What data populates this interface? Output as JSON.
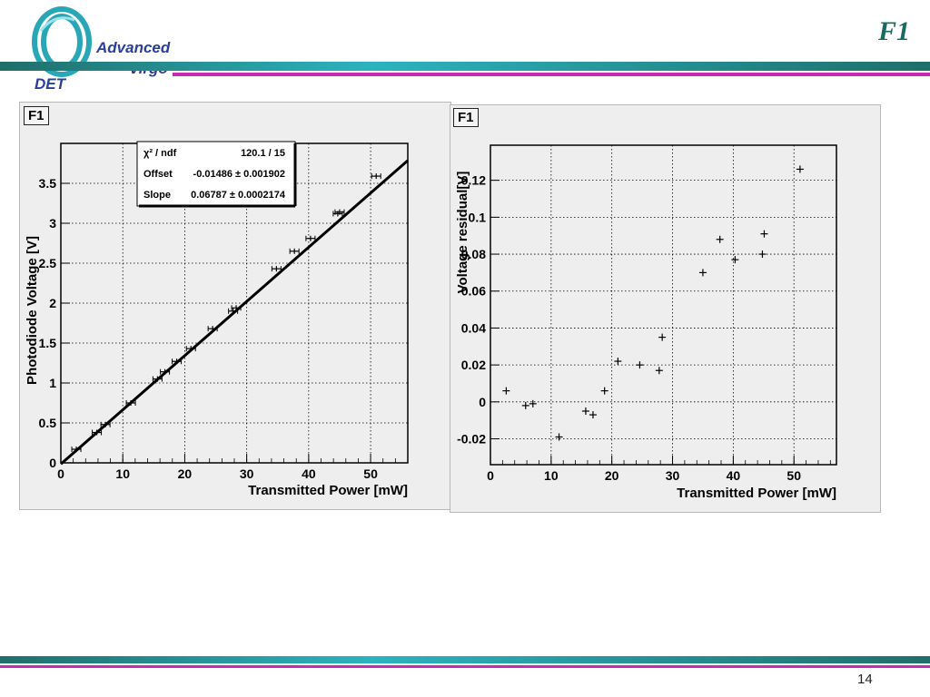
{
  "header": {
    "title": "F1",
    "logo": {
      "line1": "Advanced",
      "line2": "Virgo",
      "tag": "DET"
    },
    "colors": {
      "teal": "#1f6f6a",
      "cyan": "#26b5c2",
      "magenta": "#c32bb3"
    }
  },
  "footer": {
    "page_number": "14"
  },
  "chart_data": [
    {
      "type": "scatter",
      "panel_label": "F1",
      "xlabel": "Transmitted Power [mW]",
      "ylabel": "Photodiode Voltage [V]",
      "xlim": [
        0,
        56
      ],
      "ylim": [
        0,
        4
      ],
      "xticks": [
        "0",
        "10",
        "20",
        "30",
        "40",
        "50"
      ],
      "yticks": [
        "0",
        "0.5",
        "1",
        "1.5",
        "2",
        "2.5",
        "3",
        "3.5"
      ],
      "grid": true,
      "stats_box": {
        "rows": [
          {
            "label": "χ² / ndf",
            "value": "120.1 / 15"
          },
          {
            "label": "Offset",
            "value": "-0.01486 ± 0.001902"
          },
          {
            "label": "Slope",
            "value": "0.06787 ± 0.0002174"
          }
        ]
      },
      "fit_line": {
        "offset": -0.01486,
        "slope": 0.06787,
        "x_range": [
          0,
          56
        ]
      },
      "series": [
        {
          "x": [
            2.5,
            5.8,
            7.2,
            11.3,
            15.6,
            16.8,
            18.7,
            21.0,
            24.5,
            27.8,
            28.3,
            34.8,
            37.7,
            40.3,
            44.7,
            45.0,
            50.9
          ],
          "y": [
            0.17,
            0.38,
            0.48,
            0.75,
            1.05,
            1.14,
            1.27,
            1.43,
            1.68,
            1.9,
            1.94,
            2.43,
            2.65,
            2.81,
            3.12,
            3.14,
            3.59
          ]
        }
      ]
    },
    {
      "type": "scatter",
      "panel_label": "F1",
      "xlabel": "Transmitted Power [mW]",
      "ylabel": "Voltage residual[V]",
      "xlim": [
        0,
        57
      ],
      "ylim": [
        -0.034,
        0.139
      ],
      "xticks": [
        "0",
        "10",
        "20",
        "30",
        "40",
        "50"
      ],
      "yticks": [
        "-0.02",
        "0",
        "0.02",
        "0.04",
        "0.06",
        "0.08",
        "0.1",
        "0.12"
      ],
      "grid": true,
      "series": [
        {
          "x": [
            2.6,
            5.8,
            7.0,
            11.3,
            15.7,
            16.9,
            18.8,
            21.0,
            24.6,
            27.8,
            28.3,
            35.0,
            37.8,
            40.3,
            44.8,
            45.1,
            51.0
          ],
          "y": [
            0.006,
            -0.002,
            -0.001,
            -0.019,
            -0.005,
            -0.007,
            0.006,
            0.022,
            0.02,
            0.017,
            0.035,
            0.07,
            0.088,
            0.077,
            0.08,
            0.091,
            0.126
          ]
        }
      ]
    }
  ]
}
